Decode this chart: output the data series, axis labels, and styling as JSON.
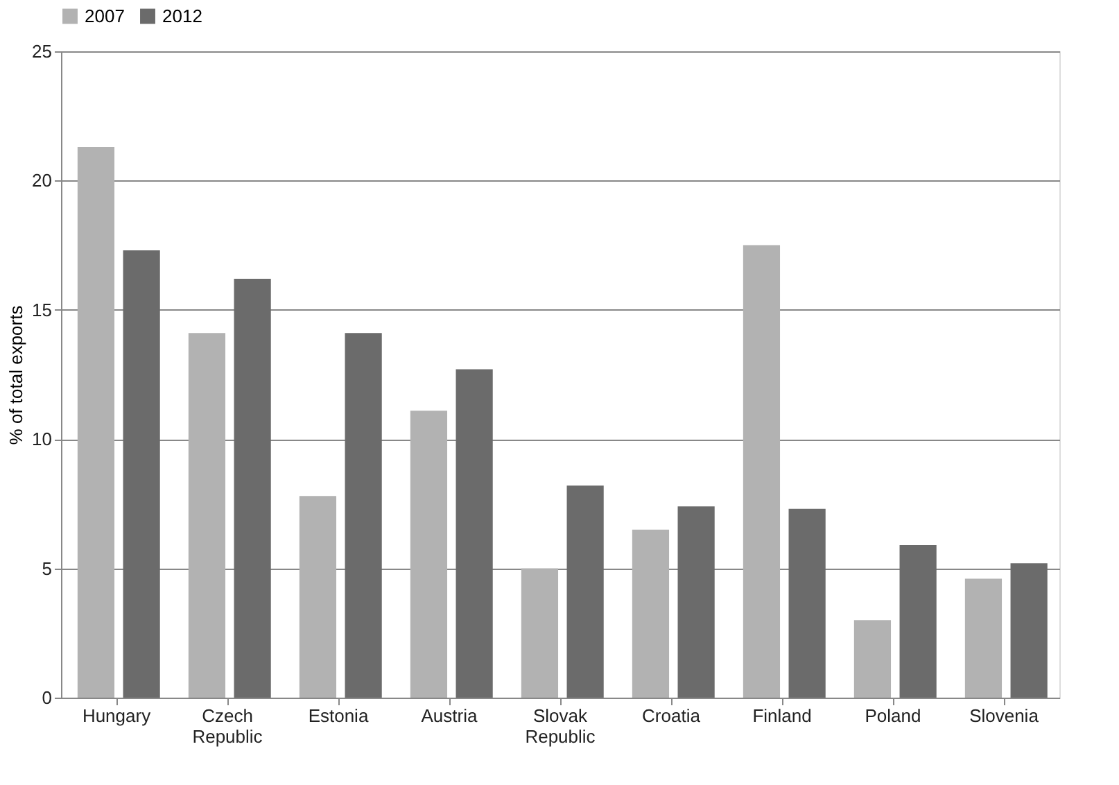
{
  "chart_data": {
    "type": "bar",
    "ylabel": "% of total exports",
    "categories": [
      "Hungary",
      "Czech Republic",
      "Estonia",
      "Austria",
      "Slovak Republic",
      "Croatia",
      "Finland",
      "Poland",
      "Slovenia"
    ],
    "series": [
      {
        "name": "2007",
        "color": "#b2b2b2",
        "values": [
          21.3,
          14.1,
          7.8,
          11.1,
          5.0,
          6.5,
          17.5,
          3.0,
          4.6
        ]
      },
      {
        "name": "2012",
        "color": "#6b6b6b",
        "values": [
          17.3,
          16.2,
          14.1,
          12.7,
          8.2,
          7.4,
          7.3,
          5.9,
          5.2
        ]
      }
    ],
    "ylim": [
      0,
      25
    ],
    "yticks": [
      0,
      5,
      10,
      15,
      20,
      25
    ],
    "grid": "y",
    "legend": "top"
  }
}
